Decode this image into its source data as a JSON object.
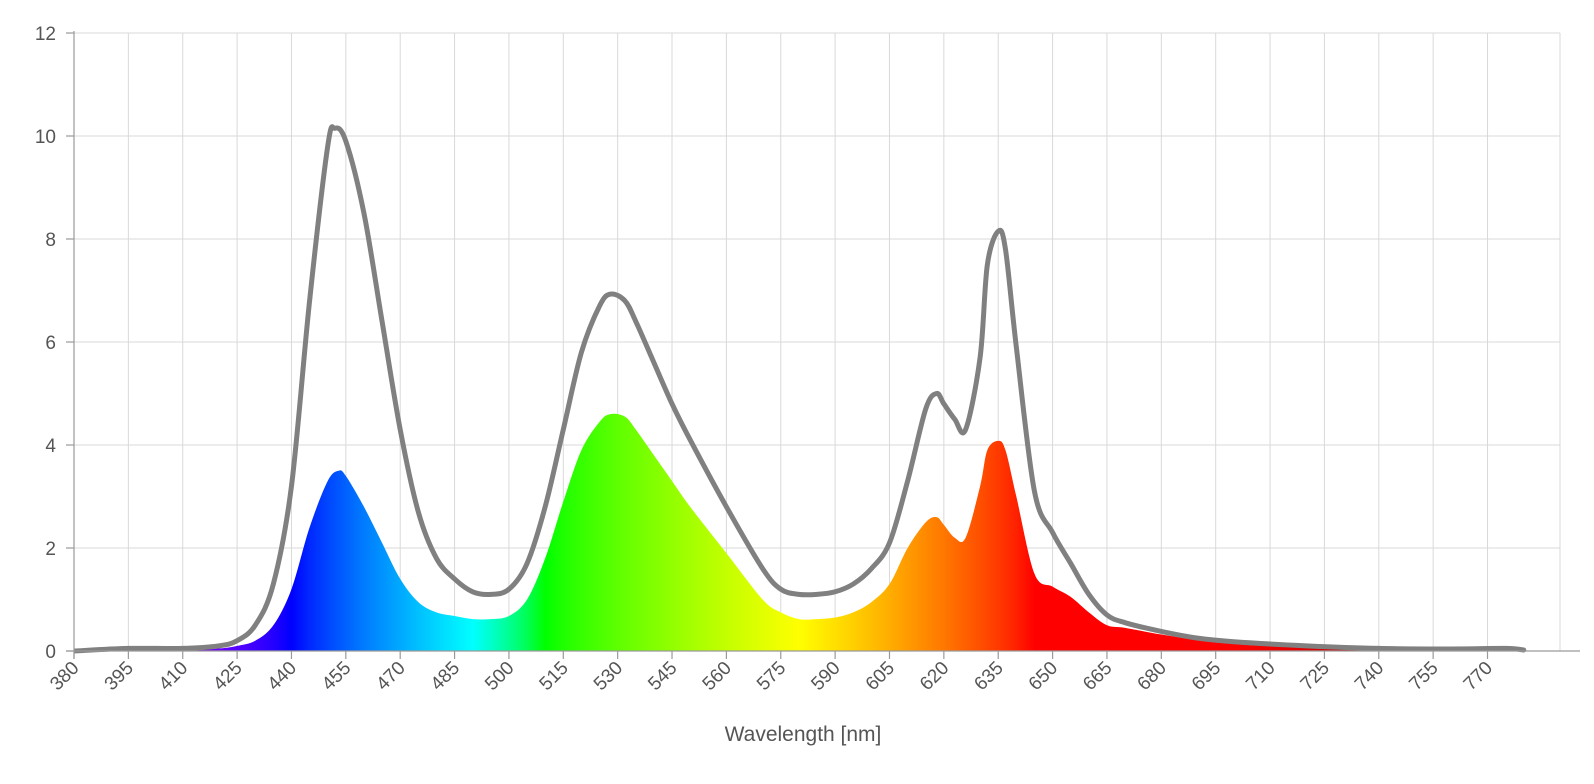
{
  "chart_data": {
    "type": "area",
    "title": "",
    "xlabel": "Wavelength [nm]",
    "ylabel": "",
    "xlim": [
      380,
      790
    ],
    "ylim": [
      0,
      12
    ],
    "x_ticks": [
      380,
      395,
      410,
      425,
      440,
      455,
      470,
      485,
      500,
      515,
      530,
      545,
      560,
      575,
      590,
      605,
      620,
      635,
      650,
      665,
      680,
      695,
      710,
      725,
      740,
      755,
      770
    ],
    "y_ticks": [
      0,
      2,
      4,
      6,
      8,
      10,
      12
    ],
    "x_tick_labels": [
      "380",
      "395",
      "410",
      "425",
      "440",
      "455",
      "470",
      "485",
      "500",
      "515",
      "530",
      "545",
      "560",
      "575",
      "590",
      "605",
      "620",
      "635",
      "650",
      "665",
      "680",
      "695",
      "710",
      "725",
      "740",
      "755",
      "770"
    ],
    "y_tick_labels": [
      "0",
      "2",
      "4",
      "6",
      "8",
      "10",
      "12"
    ],
    "grid": true,
    "legend": "none",
    "colors": {
      "outline": "#808080",
      "grid": "#d9d9d9",
      "axis": "#9a9a9a"
    },
    "series": [
      {
        "style": "outline",
        "x": [
          380,
          395,
          410,
          420,
          425,
          430,
          435,
          440,
          445,
          450,
          452,
          455,
          460,
          465,
          470,
          475,
          480,
          485,
          490,
          495,
          500,
          505,
          510,
          515,
          520,
          525,
          528,
          532,
          535,
          540,
          545,
          550,
          560,
          570,
          575,
          580,
          585,
          590,
          595,
          600,
          605,
          610,
          615,
          618,
          620,
          623,
          626,
          630,
          632,
          635,
          637,
          640,
          645,
          650,
          655,
          660,
          665,
          670,
          680,
          690,
          700,
          720,
          740,
          760,
          775,
          780
        ],
        "y": [
          0.0,
          0.05,
          0.05,
          0.1,
          0.2,
          0.5,
          1.3,
          3.2,
          6.8,
          9.8,
          10.15,
          9.9,
          8.5,
          6.4,
          4.3,
          2.7,
          1.8,
          1.4,
          1.15,
          1.1,
          1.2,
          1.7,
          2.8,
          4.3,
          5.8,
          6.7,
          6.93,
          6.8,
          6.4,
          5.6,
          4.8,
          4.1,
          2.8,
          1.6,
          1.2,
          1.1,
          1.1,
          1.15,
          1.3,
          1.6,
          2.1,
          3.3,
          4.7,
          5.0,
          4.8,
          4.5,
          4.3,
          5.7,
          7.5,
          8.15,
          7.8,
          5.9,
          3.1,
          2.3,
          1.7,
          1.1,
          0.7,
          0.55,
          0.38,
          0.25,
          0.18,
          0.1,
          0.05,
          0.04,
          0.05,
          0.02
        ]
      },
      {
        "style": "spectrum-fill",
        "x": [
          380,
          395,
          410,
          420,
          425,
          430,
          435,
          440,
          445,
          450,
          453,
          455,
          460,
          465,
          470,
          475,
          480,
          485,
          490,
          495,
          500,
          505,
          510,
          515,
          520,
          525,
          528,
          532,
          535,
          540,
          545,
          550,
          560,
          570,
          575,
          580,
          585,
          590,
          595,
          600,
          605,
          610,
          615,
          618,
          620,
          623,
          626,
          630,
          632,
          635,
          637,
          640,
          645,
          650,
          655,
          660,
          665,
          670,
          680,
          690,
          700,
          720,
          740,
          760,
          775,
          780
        ],
        "y": [
          0.0,
          0.03,
          0.03,
          0.05,
          0.1,
          0.2,
          0.5,
          1.2,
          2.4,
          3.3,
          3.5,
          3.4,
          2.8,
          2.1,
          1.4,
          0.95,
          0.75,
          0.68,
          0.62,
          0.62,
          0.68,
          1.0,
          1.8,
          2.9,
          3.9,
          4.45,
          4.6,
          4.55,
          4.3,
          3.8,
          3.3,
          2.8,
          1.9,
          1.0,
          0.75,
          0.62,
          0.62,
          0.65,
          0.75,
          0.95,
          1.3,
          2.0,
          2.5,
          2.6,
          2.45,
          2.2,
          2.2,
          3.2,
          3.9,
          4.08,
          3.9,
          3.0,
          1.5,
          1.25,
          1.05,
          0.75,
          0.5,
          0.45,
          0.32,
          0.22,
          0.15,
          0.08,
          0.04,
          0.03,
          0.04,
          0.01
        ]
      }
    ]
  }
}
